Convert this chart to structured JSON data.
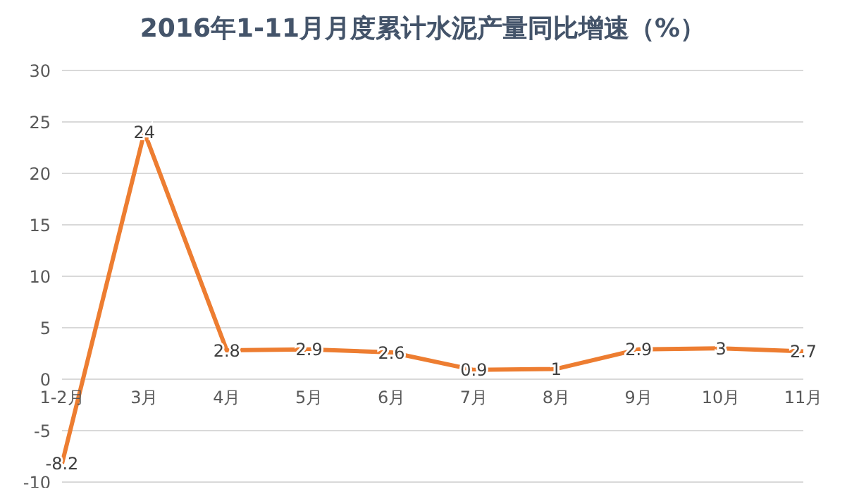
{
  "chart_data": {
    "type": "line",
    "title": "2016年1-11月月度累计水泥产量同比增速（%）",
    "categories": [
      "1-2月",
      "3月",
      "4月",
      "5月",
      "6月",
      "7月",
      "8月",
      "9月",
      "10月",
      "11月"
    ],
    "series": [
      {
        "color": "#ed7d31",
        "values": [
          -8.2,
          24,
          2.8,
          2.9,
          2.6,
          0.9,
          1,
          2.9,
          3,
          2.7
        ]
      }
    ],
    "ylim": [
      -10,
      30
    ],
    "yticks": [
      -10,
      -5,
      0,
      5,
      10,
      15,
      20,
      25,
      30
    ],
    "grid": "y",
    "data_labels": true,
    "marker": "none",
    "line_style": "solid"
  }
}
